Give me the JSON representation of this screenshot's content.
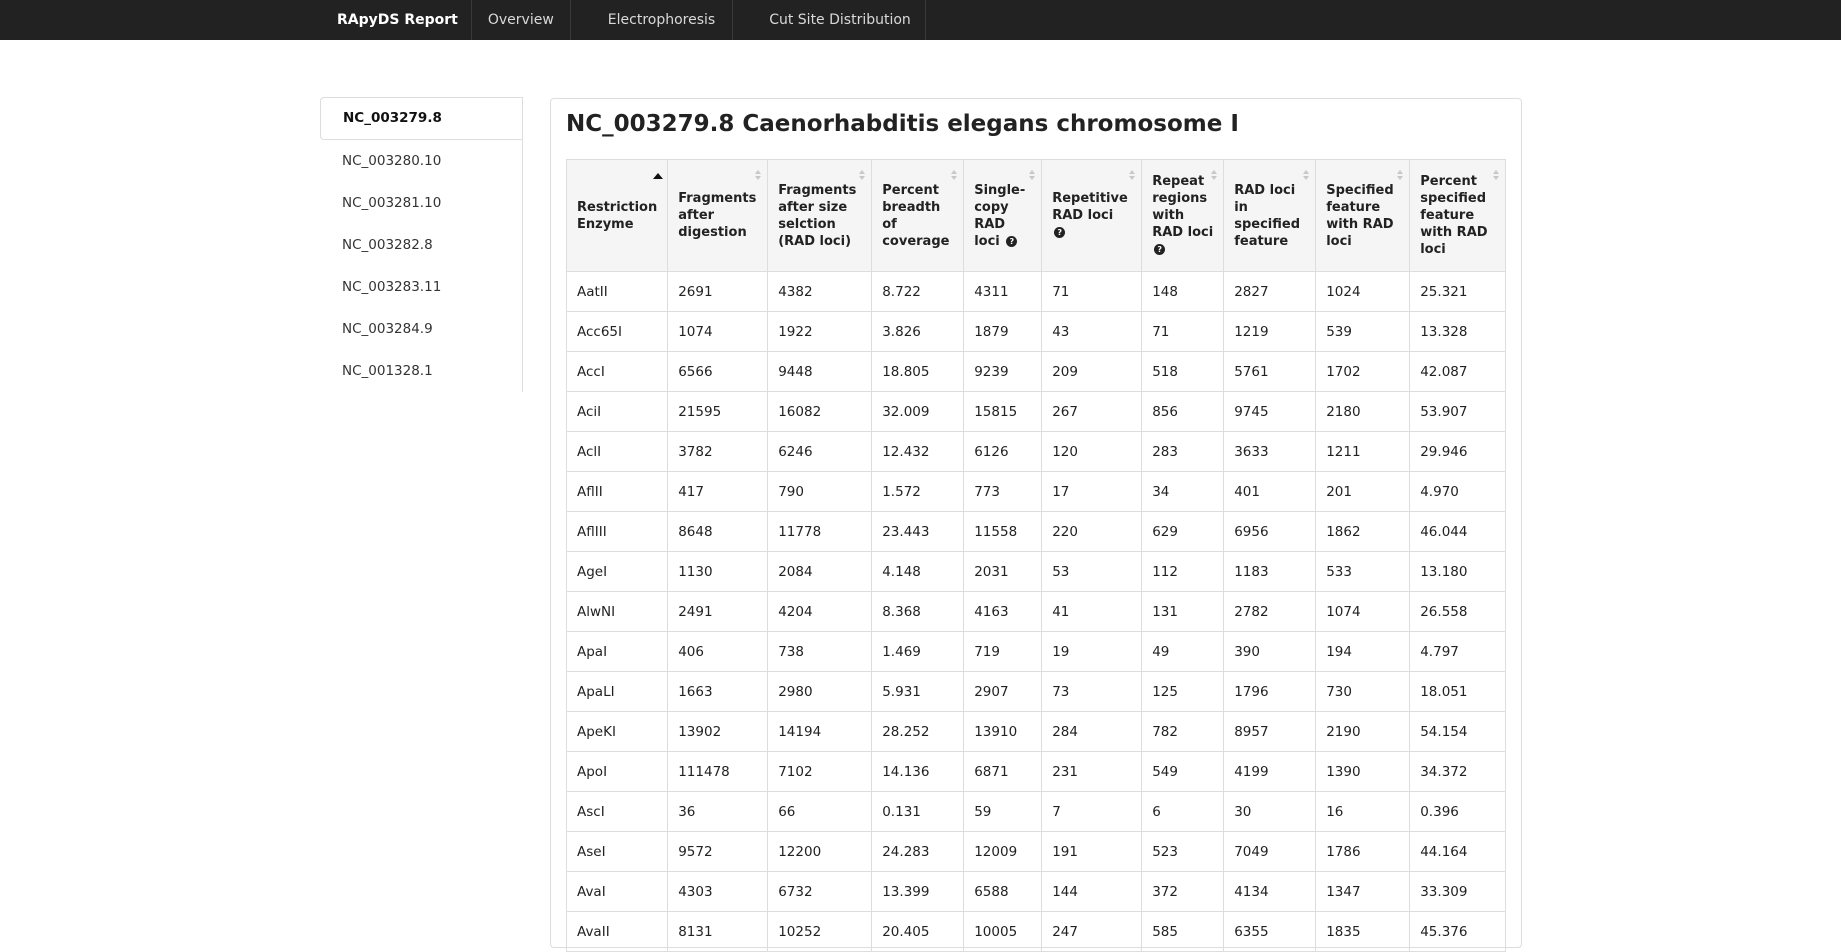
{
  "navbar": {
    "brand": "RApyDS Report",
    "links": [
      "Overview",
      "Electrophoresis",
      "Cut Site Distribution"
    ]
  },
  "sidebar": {
    "items": [
      "NC_003279.8",
      "NC_003280.10",
      "NC_003281.10",
      "NC_003282.8",
      "NC_003283.11",
      "NC_003284.9",
      "NC_001328.1"
    ],
    "active": "NC_003279.8"
  },
  "panel": {
    "title": "NC_003279.8 Caenorhabditis elegans chromosome I"
  },
  "table": {
    "headers": [
      "Restriction Enzyme",
      "Fragments after digestion",
      "Fragments after size selction (RAD loci)",
      "Percent breadth of coverage",
      "Single-copy RAD loci",
      "Repetitive RAD loci",
      "Repeat regions with RAD loci",
      "RAD loci in specified feature",
      "Specified feature with RAD loci",
      "Percent specified feature with RAD loci"
    ],
    "rows": [
      [
        "AatII",
        "2691",
        "4382",
        "8.722",
        "4311",
        "71",
        "148",
        "2827",
        "1024",
        "25.321"
      ],
      [
        "Acc65I",
        "1074",
        "1922",
        "3.826",
        "1879",
        "43",
        "71",
        "1219",
        "539",
        "13.328"
      ],
      [
        "AccI",
        "6566",
        "9448",
        "18.805",
        "9239",
        "209",
        "518",
        "5761",
        "1702",
        "42.087"
      ],
      [
        "AciI",
        "21595",
        "16082",
        "32.009",
        "15815",
        "267",
        "856",
        "9745",
        "2180",
        "53.907"
      ],
      [
        "AclI",
        "3782",
        "6246",
        "12.432",
        "6126",
        "120",
        "283",
        "3633",
        "1211",
        "29.946"
      ],
      [
        "AflII",
        "417",
        "790",
        "1.572",
        "773",
        "17",
        "34",
        "401",
        "201",
        "4.970"
      ],
      [
        "AflIII",
        "8648",
        "11778",
        "23.443",
        "11558",
        "220",
        "629",
        "6956",
        "1862",
        "46.044"
      ],
      [
        "AgeI",
        "1130",
        "2084",
        "4.148",
        "2031",
        "53",
        "112",
        "1183",
        "533",
        "13.180"
      ],
      [
        "AlwNI",
        "2491",
        "4204",
        "8.368",
        "4163",
        "41",
        "131",
        "2782",
        "1074",
        "26.558"
      ],
      [
        "ApaI",
        "406",
        "738",
        "1.469",
        "719",
        "19",
        "49",
        "390",
        "194",
        "4.797"
      ],
      [
        "ApaLI",
        "1663",
        "2980",
        "5.931",
        "2907",
        "73",
        "125",
        "1796",
        "730",
        "18.051"
      ],
      [
        "ApeKI",
        "13902",
        "14194",
        "28.252",
        "13910",
        "284",
        "782",
        "8957",
        "2190",
        "54.154"
      ],
      [
        "ApoI",
        "111478",
        "7102",
        "14.136",
        "6871",
        "231",
        "549",
        "4199",
        "1390",
        "34.372"
      ],
      [
        "AscI",
        "36",
        "66",
        "0.131",
        "59",
        "7",
        "6",
        "30",
        "16",
        "0.396"
      ],
      [
        "AseI",
        "9572",
        "12200",
        "24.283",
        "12009",
        "191",
        "523",
        "7049",
        "1786",
        "44.164"
      ],
      [
        "AvaI",
        "4303",
        "6732",
        "13.399",
        "6588",
        "144",
        "372",
        "4134",
        "1347",
        "33.309"
      ],
      [
        "AvaII",
        "8131",
        "10252",
        "20.405",
        "10005",
        "247",
        "585",
        "6355",
        "1835",
        "45.376"
      ]
    ]
  }
}
